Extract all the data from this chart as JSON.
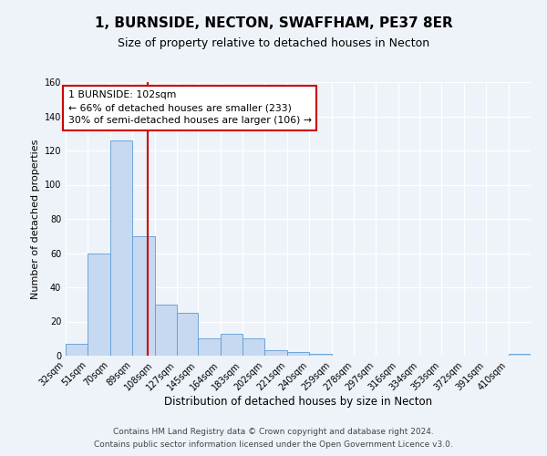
{
  "title": "1, BURNSIDE, NECTON, SWAFFHAM, PE37 8ER",
  "subtitle": "Size of property relative to detached houses in Necton",
  "xlabel": "Distribution of detached houses by size in Necton",
  "ylabel": "Number of detached properties",
  "bin_labels": [
    "32sqm",
    "51sqm",
    "70sqm",
    "89sqm",
    "108sqm",
    "127sqm",
    "145sqm",
    "164sqm",
    "183sqm",
    "202sqm",
    "221sqm",
    "240sqm",
    "259sqm",
    "278sqm",
    "297sqm",
    "316sqm",
    "334sqm",
    "353sqm",
    "372sqm",
    "391sqm",
    "410sqm"
  ],
  "bin_edges": [
    32,
    51,
    70,
    89,
    108,
    127,
    145,
    164,
    183,
    202,
    221,
    240,
    259,
    278,
    297,
    316,
    334,
    353,
    372,
    391,
    410
  ],
  "bar_heights": [
    7,
    60,
    126,
    70,
    30,
    25,
    10,
    13,
    10,
    3,
    2,
    1,
    0,
    0,
    0,
    0,
    0,
    0,
    0,
    0,
    1
  ],
  "bar_color": "#c6d9f1",
  "bar_edge_color": "#5b9bd5",
  "vline_x": 102,
  "vline_color": "#cc0000",
  "annotation_line1": "1 BURNSIDE: 102sqm",
  "annotation_line2": "← 66% of detached houses are smaller (233)",
  "annotation_line3": "30% of semi-detached houses are larger (106) →",
  "ylim": [
    0,
    160
  ],
  "yticks": [
    0,
    20,
    40,
    60,
    80,
    100,
    120,
    140,
    160
  ],
  "footer_line1": "Contains HM Land Registry data © Crown copyright and database right 2024.",
  "footer_line2": "Contains public sector information licensed under the Open Government Licence v3.0.",
  "bg_color": "#eef2f9",
  "plot_bg_color": "#eef2f9",
  "grid_color": "#ffffff",
  "title_fontsize": 11,
  "subtitle_fontsize": 9,
  "xlabel_fontsize": 8.5,
  "ylabel_fontsize": 8,
  "tick_fontsize": 7,
  "footer_fontsize": 6.5
}
